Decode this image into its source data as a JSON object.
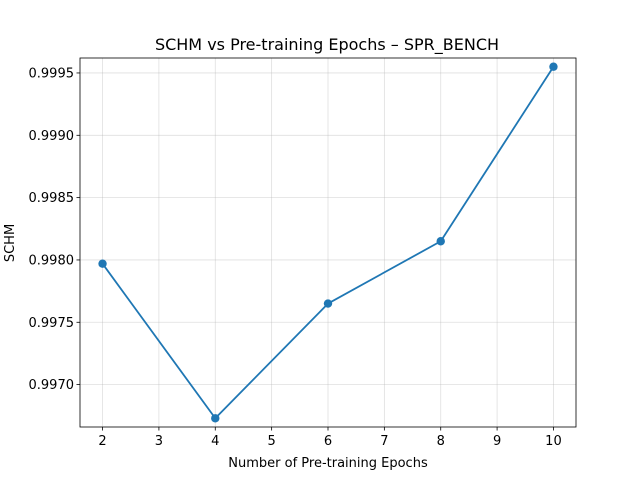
{
  "chart_data": {
    "type": "line",
    "title": "SCHM vs Pre-training Epochs – SPR_BENCH",
    "xlabel": "Number of Pre-training Epochs",
    "ylabel": "SCHM",
    "x": [
      2,
      4,
      6,
      8,
      10
    ],
    "series": [
      {
        "values": [
          0.99797,
          0.99673,
          0.99765,
          0.99815,
          0.99955
        ],
        "color": "#1f77b4",
        "marker": "circle"
      }
    ],
    "xlim": [
      1.6,
      10.4
    ],
    "ylim": [
      0.99666,
      0.99962
    ],
    "xticks": [
      2,
      3,
      4,
      5,
      6,
      7,
      8,
      9,
      10
    ],
    "yticks": [
      0.997,
      0.9975,
      0.998,
      0.9985,
      0.999,
      0.9995
    ],
    "ytick_labels": [
      "0.9970",
      "0.9975",
      "0.9980",
      "0.9985",
      "0.9990",
      "0.9995"
    ],
    "grid": true,
    "legend": false
  }
}
